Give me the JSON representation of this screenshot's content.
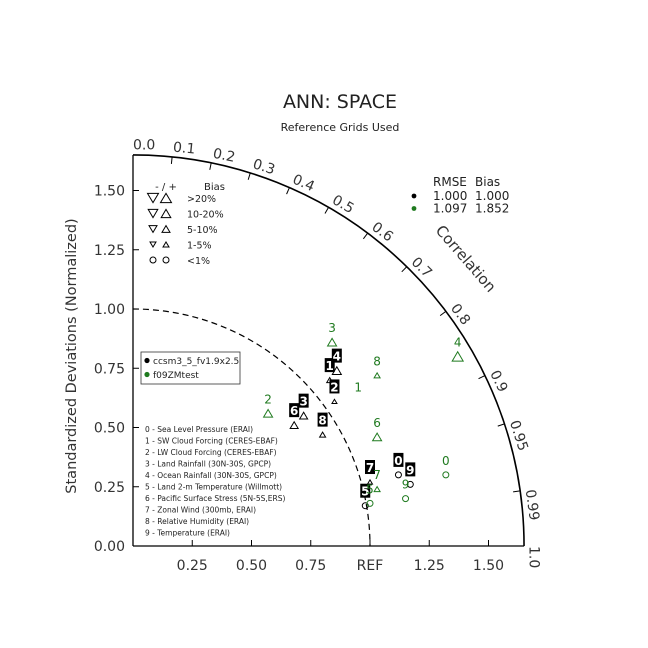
{
  "chart_data": {
    "type": "taylor-diagram",
    "title": "ANN: SPACE",
    "subtitle": "Reference Grids Used",
    "ylabel": "Standardized Deviations (Normalized)",
    "arc_label": "Correlation",
    "ref_label": "REF",
    "r_max": 1.65,
    "std_ticks": [
      "0.00",
      "0.25",
      "0.50",
      "0.75",
      "1.00",
      "1.25",
      "1.50"
    ],
    "x_ticks": [
      "0.25",
      "0.50",
      "0.75",
      "REF",
      "1.25",
      "1.50"
    ],
    "corr_ticks": [
      "0.0",
      "0.1",
      "0.2",
      "0.3",
      "0.4",
      "0.5",
      "0.6",
      "0.7",
      "0.8",
      "0.9",
      "0.95",
      "0.99",
      "1.0"
    ],
    "ref_circle_radius": 1.0,
    "bias_legend": {
      "header": "- / +",
      "bias_label": "Bias",
      "rows": [
        {
          "label": ">20%",
          "size": 5.5
        },
        {
          "label": "10-20%",
          "size": 4.8
        },
        {
          "label": "5-10%",
          "size": 4.0
        },
        {
          "label": "1-5%",
          "size": 3.0
        },
        {
          "label": "<1%",
          "size": 3.0,
          "circle": true
        }
      ]
    },
    "cases_legend": {
      "header_rmse": "RMSE",
      "header_bias": "Bias",
      "rows": [
        {
          "color": "#000000",
          "rmse": "1.000",
          "bias": "1.000"
        },
        {
          "color": "#1f7a1f",
          "rmse": "1.097",
          "bias": "1.852"
        }
      ]
    },
    "model_legend": [
      {
        "name": "ccsm3_5_fv1.9x2.5",
        "color": "#000000"
      },
      {
        "name": "f09ZMtest",
        "color": "#1f7a1f"
      }
    ],
    "variables": [
      "0 - Sea Level Pressure (ERAI)",
      "1 - SW Cloud Forcing (CERES-EBAF)",
      "2 - LW Cloud Forcing (CERES-EBAF)",
      "3 - Land Rainfall (30N-30S, GPCP)",
      "4 - Ocean Rainfall (30N-30S, GPCP)",
      "5 - Land 2-m Temperature (Willmott)",
      "6 - Pacific Surface Stress (5N-5S,ERS)",
      "7 - Zonal Wind (300mb, ERAI)",
      "8 - Relative Humidity (ERAI)",
      "9 - Temperature (ERAI)"
    ],
    "series": [
      {
        "name": "ccsm3_5_fv1.9x2.5",
        "color": "#000000",
        "points": [
          {
            "label": "0",
            "x": 1.12,
            "y": 0.3,
            "marker": "circle",
            "size": 3
          },
          {
            "label": "1",
            "x": 0.83,
            "y": 0.7,
            "marker": "triangle-up",
            "size": 3
          },
          {
            "label": "2",
            "x": 0.85,
            "y": 0.61,
            "marker": "triangle-up",
            "size": 2.5
          },
          {
            "label": "3",
            "x": 0.72,
            "y": 0.55,
            "marker": "triangle-up",
            "size": 4
          },
          {
            "label": "4",
            "x": 0.86,
            "y": 0.74,
            "marker": "triangle-up",
            "size": 4.5
          },
          {
            "label": "5",
            "x": 0.98,
            "y": 0.17,
            "marker": "circle",
            "size": 3
          },
          {
            "label": "6",
            "x": 0.68,
            "y": 0.51,
            "marker": "triangle-up",
            "size": 4
          },
          {
            "label": "7",
            "x": 1.0,
            "y": 0.27,
            "marker": "triangle-up",
            "size": 2.5
          },
          {
            "label": "8",
            "x": 0.8,
            "y": 0.47,
            "marker": "triangle-up",
            "size": 3
          },
          {
            "label": "9",
            "x": 1.17,
            "y": 0.26,
            "marker": "circle",
            "size": 3
          }
        ]
      },
      {
        "name": "f09ZMtest",
        "color": "#1f7a1f",
        "points": [
          {
            "label": "0",
            "x": 1.32,
            "y": 0.3,
            "marker": "circle",
            "size": 3
          },
          {
            "label": "1",
            "x": 0.95,
            "y": 0.61,
            "marker": "none",
            "size": 3
          },
          {
            "label": "2",
            "x": 0.57,
            "y": 0.56,
            "marker": "triangle-up",
            "size": 4.5
          },
          {
            "label": "3",
            "x": 0.84,
            "y": 0.86,
            "marker": "triangle-up",
            "size": 4.5
          },
          {
            "label": "4",
            "x": 1.37,
            "y": 0.8,
            "marker": "triangle-up",
            "size": 5.5
          },
          {
            "label": "5",
            "x": 1.0,
            "y": 0.18,
            "marker": "circle",
            "size": 3
          },
          {
            "label": "6",
            "x": 1.03,
            "y": 0.46,
            "marker": "triangle-up",
            "size": 4.5
          },
          {
            "label": "7",
            "x": 1.03,
            "y": 0.24,
            "marker": "triangle-up",
            "size": 3
          },
          {
            "label": "8",
            "x": 1.03,
            "y": 0.72,
            "marker": "triangle-up",
            "size": 3
          },
          {
            "label": "9",
            "x": 1.15,
            "y": 0.2,
            "marker": "circle",
            "size": 3
          }
        ]
      }
    ]
  }
}
